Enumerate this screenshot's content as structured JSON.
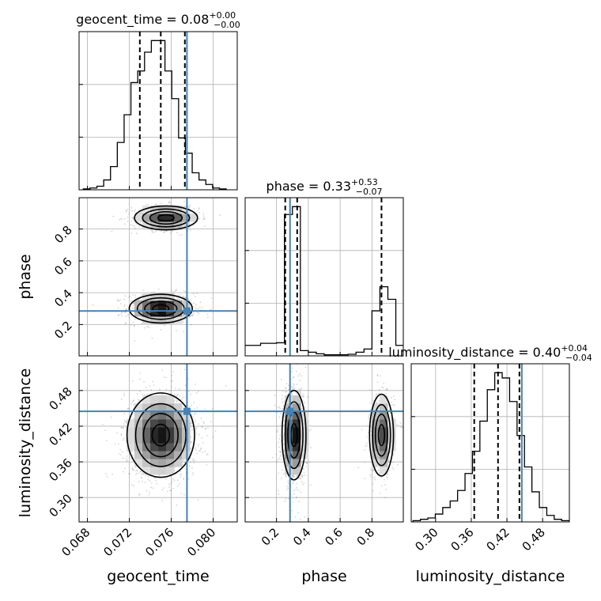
{
  "chart_data": {
    "type": "corner",
    "parameters": [
      "geocent_time",
      "phase",
      "luminosity_distance"
    ],
    "truths": {
      "geocent_time": 0.0775,
      "phase": 0.285,
      "luminosity_distance": 0.445
    },
    "axes": {
      "geocent_time": {
        "range": [
          0.0672,
          0.0823
        ],
        "ticks": [
          0.068,
          0.072,
          0.076,
          0.08
        ],
        "tick_labels": [
          "0.068",
          "0.072",
          "0.076",
          "0.080"
        ]
      },
      "phase": {
        "range": [
          0.003,
          0.997
        ],
        "ticks": [
          0.2,
          0.4,
          0.6,
          0.8
        ],
        "tick_labels": [
          "0.2",
          "0.4",
          "0.6",
          "0.8"
        ]
      },
      "luminosity_distance": {
        "range": [
          0.259,
          0.525
        ],
        "ticks": [
          0.3,
          0.36,
          0.42,
          0.48
        ],
        "tick_labels": [
          "0.30",
          "0.36",
          "0.42",
          "0.48"
        ]
      }
    },
    "titles": [
      {
        "param": "geocent_time",
        "prefix": "geocent_time = 0.08",
        "sup": "+0.00",
        "sub": "−0.00"
      },
      {
        "param": "phase",
        "prefix": "phase = 0.33",
        "sup": "+0.53",
        "sub": "−0.07"
      },
      {
        "param": "luminosity_distance",
        "prefix": "luminosity_distance = 0.40",
        "sup": "+0.04",
        "sub": "−0.04"
      }
    ],
    "quantiles": {
      "geocent_time": [
        0.073,
        0.075,
        0.0773
      ],
      "phase": [
        0.255,
        0.33,
        0.86
      ],
      "luminosity_distance": [
        0.365,
        0.405,
        0.441
      ]
    },
    "histograms": {
      "geocent_time": {
        "edges": [
          0.0676,
          0.06825,
          0.0689,
          0.06955,
          0.0702,
          0.07085,
          0.0715,
          0.07215,
          0.0728,
          0.07345,
          0.0741,
          0.07475,
          0.0754,
          0.07605,
          0.0767,
          0.07735,
          0.078,
          0.07865,
          0.0793,
          0.07995,
          0.0806,
          0.08125
        ],
        "counts": [
          1,
          2,
          4,
          11,
          26,
          53,
          84,
          120,
          133,
          154,
          167,
          167,
          133,
          102,
          58,
          41,
          19,
          11,
          6,
          2,
          1
        ]
      },
      "phase": {
        "edges": [
          0.0,
          0.05,
          0.1,
          0.15,
          0.2,
          0.25,
          0.3,
          0.35,
          0.4,
          0.45,
          0.5,
          0.55,
          0.6,
          0.65,
          0.7,
          0.75,
          0.8,
          0.85,
          0.9,
          0.95,
          1.0
        ],
        "counts": [
          20,
          20,
          24,
          24,
          25,
          270,
          285,
          10,
          7,
          4,
          2,
          2,
          2,
          3,
          7,
          13,
          86,
          132,
          108,
          20
        ]
      },
      "luminosity_distance": {
        "edges": [
          0.262,
          0.2745,
          0.287,
          0.2995,
          0.312,
          0.3245,
          0.337,
          0.3495,
          0.362,
          0.3745,
          0.387,
          0.3995,
          0.412,
          0.4245,
          0.437,
          0.4495,
          0.462,
          0.4745,
          0.487,
          0.4995,
          0.512,
          0.525
        ],
        "counts": [
          1,
          2,
          3,
          6,
          11,
          16,
          24,
          37,
          54,
          77,
          101,
          114,
          110,
          92,
          66,
          42,
          23,
          11,
          5,
          2,
          1
        ]
      }
    },
    "modes_2d": {
      "geocent_time__phase": [
        {
          "cx": 0.075,
          "cy": 0.3,
          "sx": 0.0014,
          "sy": 0.042,
          "w": 0.6
        },
        {
          "cx": 0.0755,
          "cy": 0.87,
          "sx": 0.0014,
          "sy": 0.035,
          "w": 0.4
        }
      ],
      "geocent_time__luminosity_distance": [
        {
          "cx": 0.075,
          "cy": 0.405,
          "sx": 0.0015,
          "sy": 0.033,
          "w": 1.0
        }
      ],
      "phase__luminosity_distance": [
        {
          "cx": 0.31,
          "cy": 0.405,
          "sx": 0.035,
          "sy": 0.035,
          "w": 0.6
        },
        {
          "cx": 0.86,
          "cy": 0.405,
          "sx": 0.035,
          "sy": 0.032,
          "w": 0.4
        }
      ]
    },
    "colors": {
      "truth": "#4682b4",
      "line": "#000000",
      "grid": "#b0b0b0",
      "samples": "#888888"
    },
    "grid": true
  }
}
